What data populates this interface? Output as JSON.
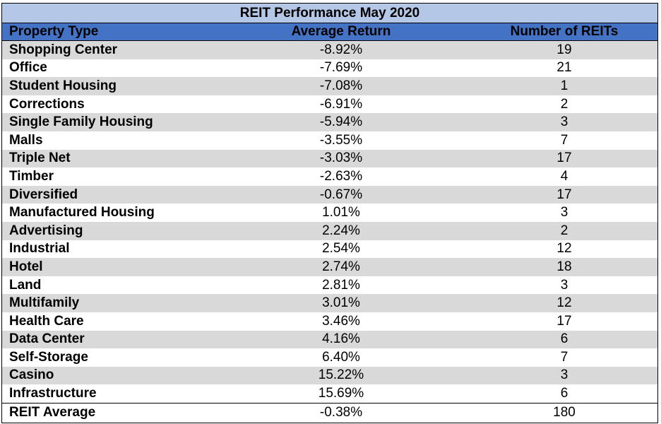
{
  "chart_data": {
    "type": "table",
    "title": "REIT Performance May 2020",
    "columns": [
      "Property Type",
      "Average Return",
      "Number of REITs"
    ],
    "rows": [
      [
        "Shopping Center",
        "-8.92%",
        "19"
      ],
      [
        "Office",
        "-7.69%",
        "21"
      ],
      [
        "Student Housing",
        "-7.08%",
        "1"
      ],
      [
        "Corrections",
        "-6.91%",
        "2"
      ],
      [
        "Single Family Housing",
        "-5.94%",
        "3"
      ],
      [
        "Malls",
        "-3.55%",
        "7"
      ],
      [
        "Triple Net",
        "-3.03%",
        "17"
      ],
      [
        "Timber",
        "-2.63%",
        "4"
      ],
      [
        "Diversified",
        "-0.67%",
        "17"
      ],
      [
        "Manufactured Housing",
        "1.01%",
        "3"
      ],
      [
        "Advertising",
        "2.24%",
        "2"
      ],
      [
        "Industrial",
        "2.54%",
        "12"
      ],
      [
        "Hotel",
        "2.74%",
        "18"
      ],
      [
        "Land",
        "2.81%",
        "3"
      ],
      [
        "Multifamily",
        "3.01%",
        "12"
      ],
      [
        "Health Care",
        "3.46%",
        "17"
      ],
      [
        "Data Center",
        "4.16%",
        "6"
      ],
      [
        "Self-Storage",
        "6.40%",
        "7"
      ],
      [
        "Casino",
        "15.22%",
        "3"
      ],
      [
        "Infrastructure",
        "15.69%",
        "6"
      ]
    ],
    "footer": [
      "REIT Average",
      "-0.38%",
      "180"
    ]
  },
  "colors": {
    "title_bg": "#b4c7e7",
    "header_bg": "#4472c4",
    "shade_bg": "#d9d9d9"
  }
}
